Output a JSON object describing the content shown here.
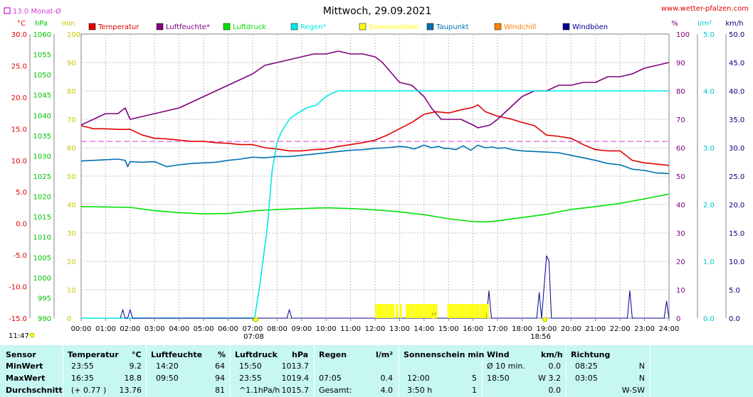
{
  "title": "Mittwoch, 29.09.2021",
  "website": "www.wetter-pfalzen.com",
  "month_avg_label": "13.0 Monat-Ø",
  "colors": {
    "temperature": "#e00000",
    "humidity": "#800080",
    "pressure": "#00e000",
    "rain": "#00e8e8",
    "sunshine": "#ffff00",
    "dewpoint": "#0070b0",
    "windchill": "#ff8000",
    "gusts": "#000090",
    "month_avg": "#d040d0"
  },
  "legend": [
    {
      "key": "temperature",
      "label": "Temperatur"
    },
    {
      "key": "humidity",
      "label": "Luftfeuchte*"
    },
    {
      "key": "pressure",
      "label": "Luftdruck"
    },
    {
      "key": "rain",
      "label": "Regen*"
    },
    {
      "key": "sunshine",
      "label": "Sonnenschein"
    },
    {
      "key": "dewpoint",
      "label": "Taupunkt"
    },
    {
      "key": "windchill",
      "label": "Windchill"
    },
    {
      "key": "gusts",
      "label": "Windböen"
    }
  ],
  "chart_data": {
    "type": "line",
    "title": "Mittwoch, 29.09.2021",
    "x_range_hours": [
      0,
      24
    ],
    "x_tick_labels": [
      "00:00",
      "01:00",
      "02:00",
      "03:00",
      "04:00",
      "05:00",
      "06:00",
      "07:00",
      "08:00",
      "09:00",
      "10:00",
      "11:00",
      "12:00",
      "13:00",
      "14:00",
      "15:00",
      "16:00",
      "17:00",
      "18:00",
      "19:00",
      "20:00",
      "21:00",
      "22:00",
      "23:00",
      "24:00"
    ],
    "axes": {
      "temperature": {
        "unit": "°C",
        "min": -15,
        "max": 30,
        "ticks": [
          "30.0",
          "25.0",
          "20.0",
          "15.0",
          "10.0",
          "5.0",
          "0.0",
          "-5.0",
          "-10.0",
          "-15.0"
        ]
      },
      "pressure": {
        "unit": "hPa",
        "min": 990,
        "max": 1060,
        "ticks": [
          "1060",
          "1055",
          "1050",
          "1045",
          "1040",
          "1035",
          "1030",
          "1025",
          "1020",
          "1015",
          "1010",
          "1005",
          "1000",
          "995",
          "990"
        ]
      },
      "sunshine": {
        "unit": "min",
        "ticks": [
          "100",
          "90",
          "80",
          "70",
          "60",
          "50",
          "40",
          "30",
          "20",
          "10",
          "0"
        ]
      },
      "humidity": {
        "unit": "%",
        "min": 0,
        "max": 100,
        "ticks": [
          "100",
          "90",
          "80",
          "70",
          "60",
          "50",
          "40",
          "30",
          "20",
          "10",
          "0"
        ]
      },
      "rain": {
        "unit": "l/m²",
        "min": 0,
        "max": 5,
        "ticks": [
          "5.0",
          "4.0",
          "3.0",
          "2.0",
          "1.0",
          "0.0"
        ]
      },
      "wind": {
        "unit": "km/h",
        "min": 0,
        "max": 50,
        "ticks": [
          "50.0",
          "45.0",
          "40.0",
          "35.0",
          "30.0",
          "25.0",
          "20.0",
          "15.0",
          "10.0",
          "5.0",
          "0.0"
        ]
      }
    },
    "time_markers": {
      "sunrise": "07:08",
      "sunset": "18:56",
      "left_time": "11:47"
    },
    "month_avg_temperature": 13.0,
    "series": [
      {
        "name": "Temperatur",
        "axis": "temperature",
        "x": [
          0,
          0.5,
          1,
          1.5,
          2,
          2.5,
          3,
          3.5,
          4,
          4.5,
          5,
          5.5,
          6,
          6.5,
          7,
          7.5,
          8,
          8.5,
          9,
          9.5,
          10,
          10.5,
          11,
          11.5,
          12,
          12.5,
          13,
          13.5,
          14,
          14.5,
          15,
          15.5,
          16,
          16.2,
          16.5,
          17,
          17.5,
          18,
          18.5,
          19,
          19.5,
          20,
          20.5,
          21,
          21.5,
          22,
          22.5,
          23,
          23.5,
          24
        ],
        "y": [
          15.5,
          15.0,
          15.0,
          14.9,
          14.9,
          14.0,
          13.5,
          13.4,
          13.2,
          13.0,
          13.0,
          12.8,
          12.7,
          12.5,
          12.5,
          12.0,
          11.8,
          11.5,
          11.5,
          11.7,
          11.8,
          12.2,
          12.5,
          12.8,
          13.2,
          14.0,
          15.0,
          16.0,
          17.3,
          17.7,
          17.5,
          18.0,
          18.4,
          18.8,
          17.7,
          17.0,
          16.6,
          16.0,
          15.5,
          14.0,
          13.8,
          13.5,
          12.5,
          11.7,
          11.5,
          11.5,
          10.0,
          9.6,
          9.4,
          9.2
        ]
      },
      {
        "name": "Luftfeuchte*",
        "axis": "humidity",
        "x": [
          0,
          0.5,
          1,
          1.5,
          1.8,
          2,
          2.5,
          3,
          3.5,
          4,
          4.5,
          5,
          5.5,
          6,
          6.5,
          7,
          7.5,
          8,
          8.5,
          9,
          9.5,
          10,
          10.5,
          11,
          11.5,
          12,
          12.3,
          12.7,
          13,
          13.5,
          14,
          14.3,
          14.7,
          15,
          15.5,
          16,
          16.2,
          16.7,
          17,
          17.5,
          18,
          18.5,
          19,
          19.5,
          20,
          20.5,
          21,
          21.5,
          22,
          22.5,
          23,
          23.5,
          24
        ],
        "y": [
          68,
          70,
          72,
          72,
          74,
          70,
          71,
          72,
          73,
          74,
          76,
          78,
          80,
          82,
          84,
          86,
          89,
          90,
          91,
          92,
          93,
          93,
          94,
          93,
          93,
          92,
          90,
          86,
          83,
          82,
          78,
          74,
          70,
          70,
          70,
          68,
          67,
          68,
          70,
          74,
          78,
          80,
          80,
          82,
          82,
          83,
          83,
          85,
          85,
          86,
          88,
          89,
          90
        ]
      },
      {
        "name": "Luftdruck",
        "axis": "pressure",
        "x": [
          0,
          1,
          2,
          3,
          4,
          5,
          6,
          7,
          8,
          9,
          10,
          11,
          12,
          13,
          14,
          15,
          16,
          16.5,
          17,
          18,
          19,
          20,
          21,
          22,
          23,
          24
        ],
        "y": [
          1017.5,
          1017.4,
          1017.3,
          1016.5,
          1016.0,
          1015.7,
          1015.8,
          1016.4,
          1016.8,
          1017.0,
          1017.2,
          1017.0,
          1016.7,
          1016.2,
          1015.5,
          1014.5,
          1013.8,
          1013.7,
          1014.0,
          1014.8,
          1015.6,
          1016.8,
          1017.5,
          1018.3,
          1019.4,
          1020.6
        ]
      },
      {
        "name": "Regen*",
        "axis": "rain",
        "x": [
          0,
          6.5,
          7.08,
          7.3,
          7.6,
          7.8,
          8,
          8.2,
          8.5,
          8.8,
          9.2,
          9.6,
          10,
          10.2,
          10.5,
          11,
          12,
          14,
          16,
          18,
          20,
          22,
          24
        ],
        "y": [
          0,
          0,
          0,
          0.6,
          1.6,
          2.6,
          3.1,
          3.3,
          3.5,
          3.6,
          3.7,
          3.75,
          3.9,
          3.95,
          4.0,
          4.0,
          4.0,
          4.0,
          4.0,
          4.0,
          4.0,
          4.0,
          4.0
        ]
      },
      {
        "name": "Taupunkt",
        "axis": "temperature",
        "x": [
          0,
          0.5,
          1,
          1.5,
          1.8,
          1.9,
          2,
          2.5,
          3,
          3.5,
          4,
          4.5,
          5,
          5.5,
          6,
          6.5,
          7,
          7.5,
          8,
          8.5,
          9,
          9.5,
          10,
          10.5,
          11,
          11.5,
          12,
          12.5,
          13,
          13.3,
          13.6,
          14,
          14.3,
          14.6,
          14.8,
          15,
          15.3,
          15.6,
          15.9,
          16.2,
          16.5,
          16.8,
          17,
          17.3,
          17.6,
          18,
          18.5,
          19,
          19.5,
          20,
          20.5,
          21,
          21.5,
          22,
          22.5,
          23,
          23.5,
          24
        ],
        "y": [
          9.9,
          10.0,
          10.1,
          10.2,
          10.0,
          9.0,
          9.8,
          9.7,
          9.8,
          9.0,
          9.3,
          9.5,
          9.6,
          9.7,
          10.0,
          10.2,
          10.5,
          10.4,
          10.6,
          10.6,
          10.8,
          11.0,
          11.2,
          11.4,
          11.6,
          11.7,
          11.9,
          12.0,
          12.2,
          12.1,
          11.8,
          12.4,
          12.0,
          12.2,
          11.9,
          11.9,
          11.7,
          12.3,
          11.6,
          12.4,
          12.0,
          12.1,
          11.9,
          12.0,
          11.7,
          11.5,
          11.4,
          11.3,
          11.2,
          10.8,
          10.4,
          10.0,
          9.5,
          9.3,
          8.6,
          8.4,
          8.0,
          7.9
        ]
      },
      {
        "name": "Windböen",
        "axis": "wind",
        "x": [
          1.6,
          1.7,
          1.8,
          1.9,
          2.0,
          2.1,
          8.4,
          8.5,
          8.6,
          14.3,
          14.4,
          14.5,
          16.55,
          16.65,
          16.75,
          18.6,
          18.7,
          18.8,
          19.0,
          19.1,
          19.2,
          22.3,
          22.4,
          22.5,
          23.8,
          23.9,
          24.0
        ],
        "y": [
          0,
          1.5,
          0,
          0,
          1.5,
          0,
          0,
          1.5,
          0,
          0,
          1.5,
          0,
          0,
          4.8,
          0,
          0,
          4.5,
          0,
          11.0,
          10.0,
          0,
          0,
          4.8,
          0,
          0,
          3.0,
          0
        ]
      },
      {
        "name": "Sonnenschein",
        "axis": "sunshine",
        "type": "bar",
        "x": [
          12.05,
          12.15,
          12.25,
          12.35,
          12.45,
          12.55,
          12.65,
          12.75,
          12.9,
          13.05,
          13.3,
          13.4,
          13.5,
          13.6,
          13.7,
          13.8,
          13.9,
          14.0,
          14.1,
          14.2,
          14.3,
          14.4,
          14.5,
          15.0,
          15.1,
          15.2,
          15.3,
          15.4,
          15.5,
          15.6,
          15.7,
          15.8,
          15.9,
          16.0,
          16.1,
          16.2,
          16.3,
          16.4,
          16.5,
          16.6
        ],
        "y": [
          5,
          5,
          5,
          5,
          5,
          5,
          5,
          5,
          5,
          5,
          5,
          5,
          5,
          5,
          5,
          5,
          5,
          5,
          5,
          5,
          5,
          5,
          5,
          5,
          5,
          5,
          5,
          5,
          5,
          5,
          5,
          5,
          5,
          5,
          5,
          5,
          5,
          5,
          5,
          5
        ]
      }
    ]
  },
  "table": {
    "header": {
      "sensor": "Sensor",
      "temperature": "Temperatur",
      "temp_unit": "°C",
      "humidity": "Luftfeuchte",
      "hum_unit": "%",
      "pressure": "Luftdruck",
      "press_unit": "hPa",
      "rain": "Regen",
      "rain_unit": "l/m²",
      "sun": "Sonnenschein min",
      "wind": "Wind",
      "wind_unit": "km/h",
      "direction": "Richtung"
    },
    "rows": [
      {
        "label": "MinWert",
        "temp_time": "23:55",
        "temp_val": "9.2",
        "hum_time": "14:20",
        "hum_val": "64",
        "press_time": "15:50",
        "press_val": "1013.7",
        "rain_time": "",
        "rain_val": "",
        "sun_time": "",
        "sun_val": "",
        "wind_time": "Ø 10 min.",
        "wind_val": "0.0",
        "dir_time": "08:25",
        "dir_val": "N"
      },
      {
        "label": "MaxWert",
        "temp_time": "16:35",
        "temp_val": "18.8",
        "hum_time": "09:50",
        "hum_val": "94",
        "press_time": "23:55",
        "press_val": "1019.4",
        "rain_time": "07:05",
        "rain_val": "0.4",
        "sun_time": "12:00",
        "sun_val": "5",
        "wind_time": "18:50",
        "wind_val": "W 3.2",
        "dir_time": "03:05",
        "dir_val": "N"
      },
      {
        "label": "Durchschnitt",
        "temp_time": "(+ 0.77 )",
        "temp_val": "13.76",
        "hum_time": "",
        "hum_val": "81",
        "press_time": "^1.1hPa/h",
        "press_val": "1015.7",
        "rain_time": "Gesamt:",
        "rain_val": "4.0",
        "sun_time": "3:50 h",
        "sun_val": "1",
        "wind_time": "",
        "wind_val": "0.0",
        "dir_time": "",
        "dir_val": "W-SW"
      }
    ]
  }
}
